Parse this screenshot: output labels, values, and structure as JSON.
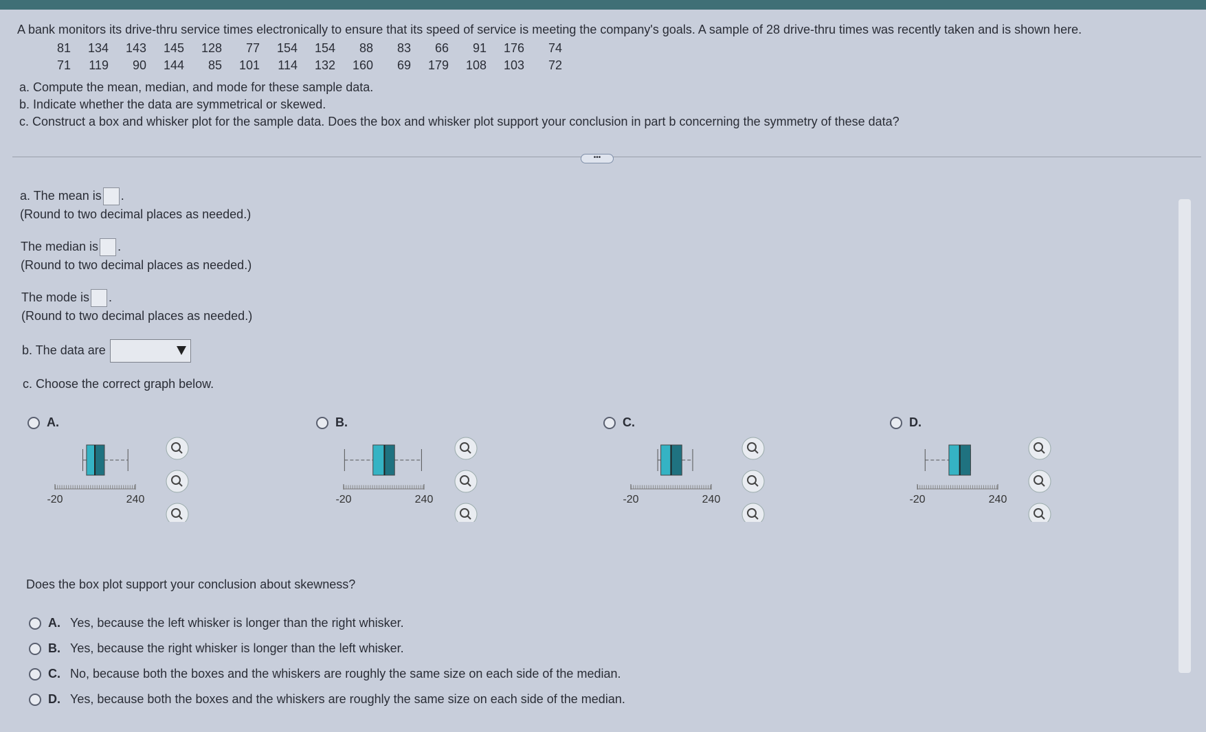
{
  "problem": {
    "text": "A bank monitors its drive-thru service times electronically to ensure that its speed of service is meeting the company's goals. A sample of 28 drive-thru times was recently taken and is shown here.",
    "data_rows": [
      [
        81,
        134,
        143,
        145,
        128,
        77,
        154,
        154,
        88,
        83,
        66,
        91,
        176,
        74
      ],
      [
        71,
        119,
        90,
        144,
        85,
        101,
        114,
        132,
        160,
        69,
        179,
        108,
        103,
        72
      ]
    ],
    "parts": [
      "a. Compute the mean, median, and mode for these sample data.",
      "b. Indicate whether the data are symmetrical or skewed.",
      "c. Construct a box and whisker plot for the sample data. Does the box and whisker plot support your conclusion in part b concerning the symmetry of these data?"
    ]
  },
  "answers": {
    "mean": {
      "label": "a. The mean is",
      "end": ".",
      "hint": "(Round to two decimal places as needed.)"
    },
    "median": {
      "label": "The median is",
      "end": ".",
      "hint": "(Round to two decimal places as needed.)"
    },
    "mode": {
      "label": "The mode is",
      "end": ".",
      "hint": "(Round to two decimal places as needed.)"
    },
    "skew": {
      "label": "b. The data are"
    },
    "graph_prompt": "c. Choose the correct graph below.",
    "graph_options": [
      {
        "label": "A.",
        "xlim": [
          -20,
          240
        ],
        "xticks": [
          -20,
          240
        ],
        "min": 70,
        "q1": 82,
        "median": 109,
        "q3": 140,
        "max": 216
      },
      {
        "label": "B.",
        "xlim": [
          -20,
          240
        ],
        "xticks": [
          -20,
          240
        ],
        "min": -17,
        "q1": 75,
        "median": 112,
        "q3": 145,
        "max": 232
      },
      {
        "label": "C.",
        "xlim": [
          -20,
          240
        ],
        "xticks": [
          -20,
          240
        ],
        "min": 67,
        "q1": 77,
        "median": 110,
        "q3": 145,
        "max": 180
      },
      {
        "label": "D.",
        "xlim": [
          -20,
          240
        ],
        "xticks": [
          -20,
          240
        ],
        "min": 5,
        "q1": 82,
        "median": 117,
        "q3": 152,
        "max": 152
      }
    ],
    "support_question": "Does the box plot support your conclusion about skewness?",
    "support_options": [
      {
        "letter": "A.",
        "text": "Yes, because the left whisker is longer than the right whisker."
      },
      {
        "letter": "B.",
        "text": "Yes, because the right whisker is longer than the left whisker."
      },
      {
        "letter": "C.",
        "text": "No, because both the boxes and the whiskers are roughly the same size on each side of the median."
      },
      {
        "letter": "D.",
        "text": "Yes, because both the boxes and the whiskers are roughly the same size on each side of the median."
      }
    ]
  }
}
